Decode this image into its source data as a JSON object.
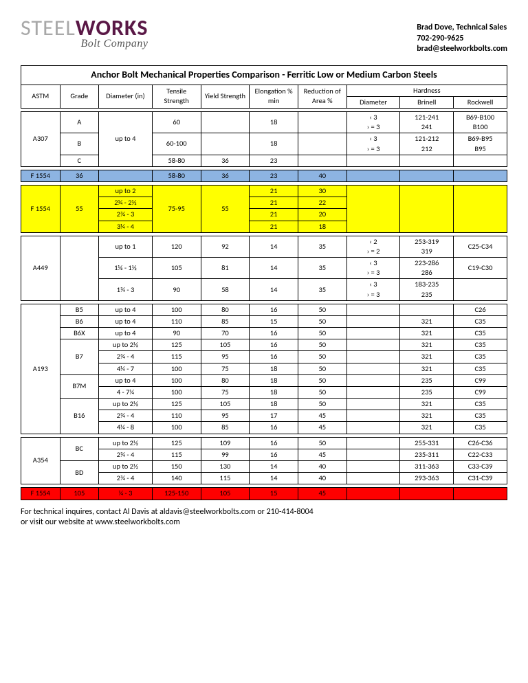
{
  "logo": {
    "part1": "STEEL",
    "part2": "WORKS",
    "sub": "Bolt Company"
  },
  "contact": {
    "name": "Brad Dove, Technical Sales",
    "phone": "702-290-9625",
    "email": "brad@steelworkbolts.com"
  },
  "title": "Anchor Bolt Mechanical Properties Comparison - Ferritic Low or Medium Carbon Steels",
  "headers": {
    "astm": "ASTM",
    "grade": "Grade",
    "diameter": "Diameter (in)",
    "tensile": "Tensile Strength",
    "yield": "Yield Strength",
    "elong": "Elongation % min",
    "reduction": "Reduction of Area %",
    "hardness": "Hardness",
    "h_diam": "Diameter",
    "h_brinell": "Brinell",
    "h_rockwell": "Rockwell"
  },
  "a307": {
    "astm": "A307",
    "diam": "up to 4",
    "rows": [
      {
        "grade": "A",
        "ts": "60",
        "ys": "",
        "el": "18",
        "ra": "",
        "hd1": "‹ 3",
        "hd2": "› = 3",
        "hb1": "121-241",
        "hb2": "241",
        "hr1": "B69-B100",
        "hr2": "B100"
      },
      {
        "grade": "B",
        "ts": "60-100",
        "ys": "",
        "el": "18",
        "ra": "",
        "hd1": "‹ 3",
        "hd2": "› = 3",
        "hb1": "121-212",
        "hb2": "212",
        "hr1": "B69-B95",
        "hr2": "B95"
      },
      {
        "grade": "C",
        "ts": "58-80",
        "ys": "36",
        "el": "23",
        "ra": "",
        "hd": "",
        "hb": "",
        "hr": ""
      }
    ]
  },
  "f1554_36": {
    "astm": "F 1554",
    "grade": "36",
    "diam": "",
    "ts": "58-80",
    "ys": "36",
    "el": "23",
    "ra": "40",
    "hd": "",
    "hb": "",
    "hr": ""
  },
  "f1554_55": {
    "astm": "F 1554",
    "grade": "55",
    "ts": "75-95",
    "ys": "55",
    "rows": [
      {
        "diam": "up to 2",
        "el": "21",
        "ra": "30"
      },
      {
        "diam": "2¼ - 2½",
        "el": "21",
        "ra": "22"
      },
      {
        "diam": "2¾ - 3",
        "el": "21",
        "ra": "20"
      },
      {
        "diam": "3¼ - 4",
        "el": "21",
        "ra": "18"
      }
    ]
  },
  "a449": {
    "astm": "A449",
    "rows": [
      {
        "diam": "up to 1",
        "ts": "120",
        "ys": "92",
        "el": "14",
        "ra": "35",
        "hd1": "‹ 2",
        "hd2": "› = 2",
        "hb1": "253-319",
        "hb2": "319",
        "hr": "C25-C34"
      },
      {
        "diam": "1⅛ - 1½",
        "ts": "105",
        "ys": "81",
        "el": "14",
        "ra": "35",
        "hd1": "‹ 3",
        "hd2": "› = 3",
        "hb1": "223-286",
        "hb2": "286",
        "hr": "C19-C30"
      },
      {
        "diam": "1¾ - 3",
        "ts": "90",
        "ys": "58",
        "el": "14",
        "ra": "35",
        "hd1": "‹ 3",
        "hd2": "› = 3",
        "hb1": "183-235",
        "hb2": "235",
        "hr": ""
      }
    ]
  },
  "a193": {
    "astm": "A193",
    "rows": [
      {
        "grade": "B5",
        "diam": "up to 4",
        "ts": "100",
        "ys": "80",
        "el": "16",
        "ra": "50",
        "hb": "",
        "hr": "C26"
      },
      {
        "grade": "B6",
        "diam": "up to 4",
        "ts": "110",
        "ys": "85",
        "el": "15",
        "ra": "50",
        "hb": "321",
        "hr": "C35"
      },
      {
        "grade": "B6X",
        "diam": "up to 4",
        "ts": "90",
        "ys": "70",
        "el": "16",
        "ra": "50",
        "hb": "321",
        "hr": "C35"
      },
      {
        "grade": "B7",
        "span": 3,
        "sub": [
          {
            "diam": "up to 2½",
            "ts": "125",
            "ys": "105",
            "el": "16",
            "ra": "50",
            "hb": "321",
            "hr": "C35"
          },
          {
            "diam": "2¾ - 4",
            "ts": "115",
            "ys": "95",
            "el": "16",
            "ra": "50",
            "hb": "321",
            "hr": "C35"
          },
          {
            "diam": "4¼ - 7",
            "ts": "100",
            "ys": "75",
            "el": "18",
            "ra": "50",
            "hb": "321",
            "hr": "C35"
          }
        ]
      },
      {
        "grade": "B7M",
        "span": 2,
        "sub": [
          {
            "diam": "up to 4",
            "ts": "100",
            "ys": "80",
            "el": "18",
            "ra": "50",
            "hb": "235",
            "hr": "C99"
          },
          {
            "diam": "4 - 7¼",
            "ts": "100",
            "ys": "75",
            "el": "18",
            "ra": "50",
            "hb": "235",
            "hr": "C99"
          }
        ]
      },
      {
        "grade": "B16",
        "span": 3,
        "sub": [
          {
            "diam": "up to 2½",
            "ts": "125",
            "ys": "105",
            "el": "18",
            "ra": "50",
            "hb": "321",
            "hr": "C35"
          },
          {
            "diam": "2¾ - 4",
            "ts": "110",
            "ys": "95",
            "el": "17",
            "ra": "45",
            "hb": "321",
            "hr": "C35"
          },
          {
            "diam": "4¼ - 8",
            "ts": "100",
            "ys": "85",
            "el": "16",
            "ra": "45",
            "hb": "321",
            "hr": "C35"
          }
        ]
      }
    ]
  },
  "a354": {
    "astm": "A354",
    "rows": [
      {
        "grade": "BC",
        "span": 2,
        "sub": [
          {
            "diam": "up to 2½",
            "ts": "125",
            "ys": "109",
            "el": "16",
            "ra": "50",
            "hb": "255-331",
            "hr": "C26-C36"
          },
          {
            "diam": "2¾ - 4",
            "ts": "115",
            "ys": "99",
            "el": "16",
            "ra": "45",
            "hb": "235-311",
            "hr": "C22-C33"
          }
        ]
      },
      {
        "grade": "BD",
        "span": 2,
        "sub": [
          {
            "diam": "up to 2½",
            "ts": "150",
            "ys": "130",
            "el": "14",
            "ra": "40",
            "hb": "311-363",
            "hr": "C33-C39"
          },
          {
            "diam": "2¾ - 4",
            "ts": "140",
            "ys": "115",
            "el": "14",
            "ra": "40",
            "hb": "293-363",
            "hr": "C31-C39"
          }
        ]
      }
    ]
  },
  "f1554_105": {
    "astm": "F 1554",
    "grade": "105",
    "diam": "¼ - 3",
    "ts": "125-150",
    "ys": "105",
    "el": "15",
    "ra": "45",
    "hd": "",
    "hb": "",
    "hr": ""
  },
  "footer": {
    "line1": "For technical inquires, contact Al Davis at aldavis@steelworkbolts.com or 210-414-8004",
    "line2": "or visit our website at www.steelworkbolts.com"
  }
}
